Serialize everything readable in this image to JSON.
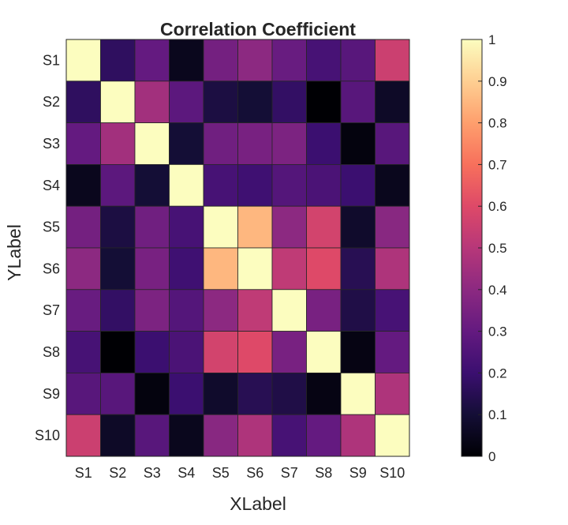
{
  "chart_data": {
    "type": "heatmap",
    "title": "Correlation Coefficient",
    "xlabel": "XLabel",
    "ylabel": "YLabel",
    "x_categories": [
      "S1",
      "S2",
      "S3",
      "S4",
      "S5",
      "S6",
      "S7",
      "S8",
      "S9",
      "S10"
    ],
    "y_categories": [
      "S1",
      "S2",
      "S3",
      "S4",
      "S5",
      "S6",
      "S7",
      "S8",
      "S9",
      "S10"
    ],
    "values": [
      [
        1.0,
        0.17,
        0.3,
        0.05,
        0.34,
        0.4,
        0.31,
        0.23,
        0.27,
        0.55
      ],
      [
        0.17,
        1.0,
        0.45,
        0.28,
        0.12,
        0.1,
        0.18,
        0.0,
        0.27,
        0.07
      ],
      [
        0.3,
        0.45,
        1.0,
        0.1,
        0.33,
        0.35,
        0.36,
        0.2,
        0.02,
        0.27
      ],
      [
        0.05,
        0.28,
        0.1,
        1.0,
        0.23,
        0.21,
        0.26,
        0.24,
        0.2,
        0.05
      ],
      [
        0.34,
        0.12,
        0.33,
        0.23,
        1.0,
        0.85,
        0.4,
        0.57,
        0.08,
        0.39
      ],
      [
        0.4,
        0.1,
        0.35,
        0.21,
        0.85,
        1.0,
        0.52,
        0.6,
        0.15,
        0.48
      ],
      [
        0.31,
        0.18,
        0.36,
        0.26,
        0.4,
        0.52,
        1.0,
        0.35,
        0.13,
        0.23
      ],
      [
        0.23,
        0.0,
        0.2,
        0.24,
        0.57,
        0.6,
        0.35,
        1.0,
        0.03,
        0.3
      ],
      [
        0.27,
        0.27,
        0.02,
        0.2,
        0.08,
        0.15,
        0.13,
        0.03,
        1.0,
        0.48
      ],
      [
        0.55,
        0.07,
        0.27,
        0.05,
        0.39,
        0.48,
        0.23,
        0.3,
        0.48,
        1.0
      ]
    ],
    "colormap": "magma",
    "clim": [
      0,
      1
    ],
    "colorbar_ticks": [
      "0",
      "0.1",
      "0.2",
      "0.3",
      "0.4",
      "0.5",
      "0.6",
      "0.7",
      "0.8",
      "0.9",
      "1"
    ],
    "grid": false,
    "colorbar_position": "right"
  }
}
